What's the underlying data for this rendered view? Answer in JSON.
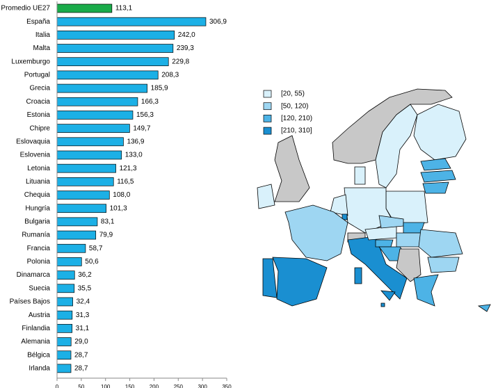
{
  "chart_data": {
    "type": "bar",
    "orientation": "horizontal",
    "categories": [
      "Promedio UE27",
      "España",
      "Italia",
      "Malta",
      "Luxemburgo",
      "Portugal",
      "Grecia",
      "Croacia",
      "Estonia",
      "Chipre",
      "Eslovaquia",
      "Eslovenia",
      "Letonia",
      "Lituania",
      "Chequia",
      "Hungría",
      "Bulgaria",
      "Rumanía",
      "Francia",
      "Polonia",
      "Dinamarca",
      "Suecia",
      "Países Bajos",
      "Austria",
      "Finlandia",
      "Alemania",
      "Bélgica",
      "Irlanda"
    ],
    "values": [
      113.1,
      306.9,
      242.0,
      239.3,
      229.8,
      208.3,
      185.9,
      166.3,
      156.3,
      149.7,
      136.9,
      133.0,
      121.3,
      116.5,
      108.0,
      101.3,
      83.1,
      79.9,
      58.7,
      50.6,
      36.2,
      35.5,
      32.4,
      31.3,
      31.1,
      29.0,
      28.7,
      28.7
    ],
    "value_labels": [
      "113,1",
      "306,9",
      "242,0",
      "239,3",
      "229,8",
      "208,3",
      "185,9",
      "166,3",
      "156,3",
      "149,7",
      "136,9",
      "133,0",
      "121,3",
      "116,5",
      "108,0",
      "101,3",
      "83,1",
      "79,9",
      "58,7",
      "50,6",
      "36,2",
      "35,5",
      "32,4",
      "31,3",
      "31,1",
      "29,0",
      "28,7",
      "28,7"
    ],
    "colors": [
      "#1aab4a",
      "#1cb0e6",
      "#1cb0e6",
      "#1cb0e6",
      "#1cb0e6",
      "#1cb0e6",
      "#1cb0e6",
      "#1cb0e6",
      "#1cb0e6",
      "#1cb0e6",
      "#1cb0e6",
      "#1cb0e6",
      "#1cb0e6",
      "#1cb0e6",
      "#1cb0e6",
      "#1cb0e6",
      "#1cb0e6",
      "#1cb0e6",
      "#1cb0e6",
      "#1cb0e6",
      "#1cb0e6",
      "#1cb0e6",
      "#1cb0e6",
      "#1cb0e6",
      "#1cb0e6",
      "#1cb0e6",
      "#1cb0e6",
      "#1cb0e6"
    ],
    "xlim": [
      0,
      350
    ],
    "xticks": [
      0,
      50,
      100,
      150,
      200,
      250,
      300,
      350
    ],
    "map_legend": [
      {
        "label": "[20, 55)",
        "color": "#d9f1fb"
      },
      {
        "label": "[50, 120)",
        "color": "#9ed6f2"
      },
      {
        "label": "[120, 210)",
        "color": "#4db3e6"
      },
      {
        "label": "[210, 310]",
        "color": "#1a8fd1"
      }
    ]
  }
}
